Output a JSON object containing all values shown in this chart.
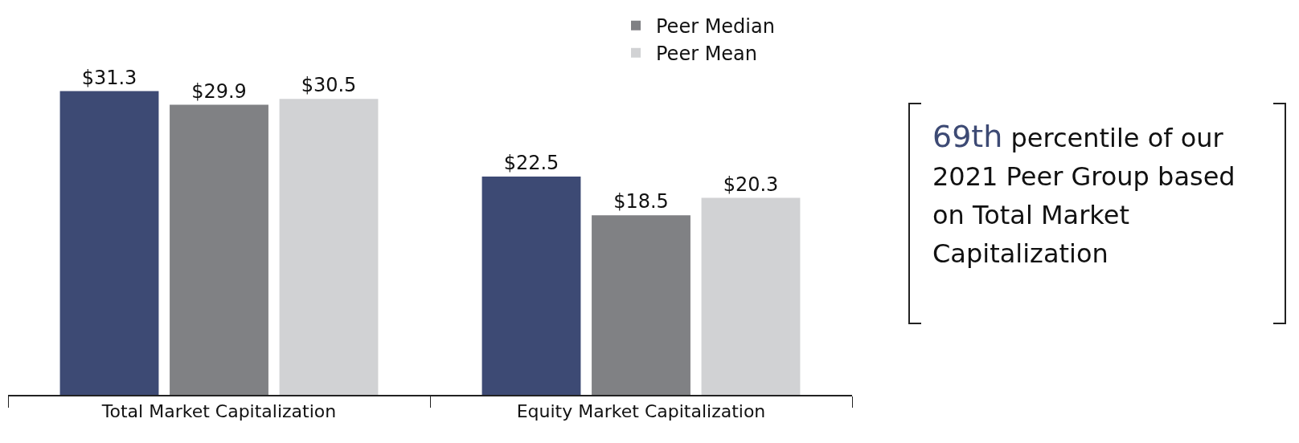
{
  "chart_data": {
    "type": "bar",
    "categories": [
      "Total Market Capitalization",
      "Equity Market Capitalization"
    ],
    "series": [
      {
        "color": "#3d4a74",
        "values": [
          31.3,
          22.5
        ],
        "value_labels": [
          "$31.3",
          "$22.5"
        ]
      },
      {
        "name": "Peer Median",
        "color": "#808184",
        "values": [
          29.9,
          18.5
        ],
        "value_labels": [
          "$29.9",
          "$18.5"
        ]
      },
      {
        "name": "Peer Mean",
        "color": "#d1d2d4",
        "values": [
          30.5,
          20.3
        ],
        "value_labels": [
          "$30.5",
          "$20.3"
        ]
      }
    ],
    "legend": "top",
    "annotations": [
      "69th percentile of our 2021 Peer Group based on Total Market Capitalization"
    ]
  }
}
